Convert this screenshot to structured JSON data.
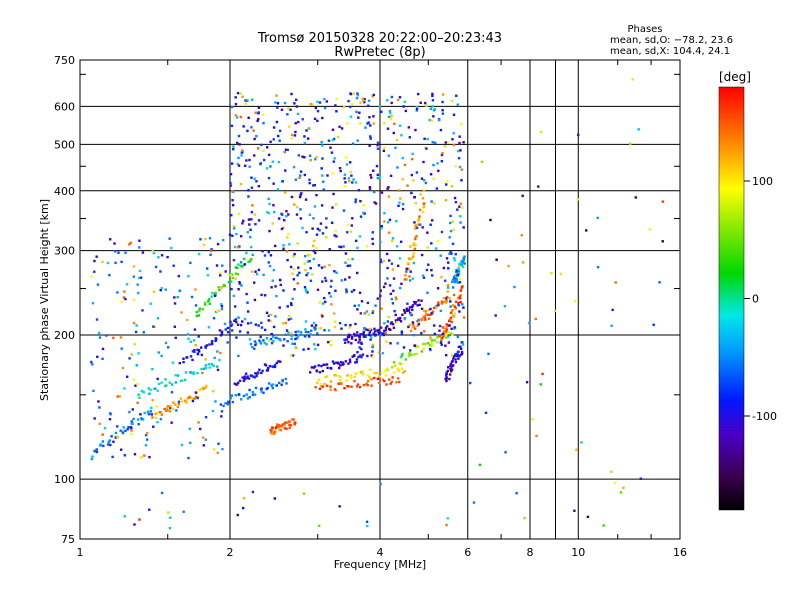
{
  "chart_data": {
    "type": "scatter",
    "title": "Tromsø 20150328 20:22:00–20:23:43",
    "subtitle": "RwPretec (8p)",
    "xlabel": "Frequency [MHz]",
    "ylabel": "Stationary phase Virtual Height [km]",
    "x_scale": "log",
    "y_scale": "log",
    "xlim": [
      1,
      16
    ],
    "ylim": [
      75,
      750
    ],
    "x_ticks": [
      1,
      2,
      4,
      6,
      8,
      10,
      16
    ],
    "y_ticks": [
      75,
      100,
      200,
      300,
      400,
      500,
      600,
      750
    ],
    "grid": true,
    "annotation": {
      "heading": "Phases",
      "line1": "mean, sd,O: −78.2, 23.6",
      "line2": "mean, sd,X: 104.4, 24.1"
    },
    "colorbar": {
      "label": "[deg]",
      "range": [
        -180,
        180
      ],
      "ticks": [
        100,
        0,
        -100
      ],
      "colormap": "rainbow (black→purple→blue→cyan→green→yellow→orange→red)"
    },
    "traces": [
      {
        "f": [
          1.05,
          1.4
        ],
        "h": [
          112,
          140
        ],
        "phase": -60
      },
      {
        "f": [
          1.4,
          1.8
        ],
        "h": [
          135,
          155
        ],
        "phase": 130
      },
      {
        "f": [
          1.3,
          1.9
        ],
        "h": [
          150,
          175
        ],
        "phase": -20
      },
      {
        "f": [
          1.6,
          2.1
        ],
        "h": [
          175,
          215
        ],
        "phase": -100
      },
      {
        "f": [
          1.7,
          2.2
        ],
        "h": [
          220,
          290
        ],
        "phase": 20
      },
      {
        "f": [
          1.95,
          2.6
        ],
        "h": [
          145,
          160
        ],
        "phase": -60
      },
      {
        "f": [
          2.05,
          2.5
        ],
        "h": [
          160,
          175
        ],
        "phase": -100
      },
      {
        "f": [
          2.4,
          2.7
        ],
        "h": [
          125,
          132
        ],
        "phase": 150
      },
      {
        "f": [
          2.2,
          3.0
        ],
        "h": [
          190,
          205
        ],
        "phase": -55
      },
      {
        "f": [
          2.9,
          3.7
        ],
        "h": [
          168,
          180
        ],
        "phase": -105
      },
      {
        "f": [
          3.0,
          4.4
        ],
        "h": [
          155,
          162
        ],
        "phase": 155
      },
      {
        "f": [
          3.0,
          4.5
        ],
        "h": [
          160,
          170
        ],
        "phase": 100
      },
      {
        "f": [
          3.4,
          4.0
        ],
        "h": [
          195,
          205
        ],
        "phase": -110
      },
      {
        "f": [
          4.0,
          4.8
        ],
        "h": [
          200,
          235
        ],
        "phase": -115
      },
      {
        "f": [
          4.3,
          5.6
        ],
        "h": [
          175,
          205
        ],
        "phase": 60
      },
      {
        "f": [
          4.6,
          5.5
        ],
        "h": [
          205,
          240
        ],
        "phase": 140
      },
      {
        "f": [
          4.5,
          4.9
        ],
        "h": [
          260,
          380
        ],
        "phase": 130
      },
      {
        "f": [
          5.3,
          5.9
        ],
        "h": [
          195,
          250
        ],
        "phase": 150
      },
      {
        "f": [
          5.6,
          5.9
        ],
        "h": [
          255,
          290
        ],
        "phase": -40
      },
      {
        "f": [
          5.4,
          5.85
        ],
        "h": [
          160,
          190
        ],
        "phase": -110
      }
    ]
  }
}
